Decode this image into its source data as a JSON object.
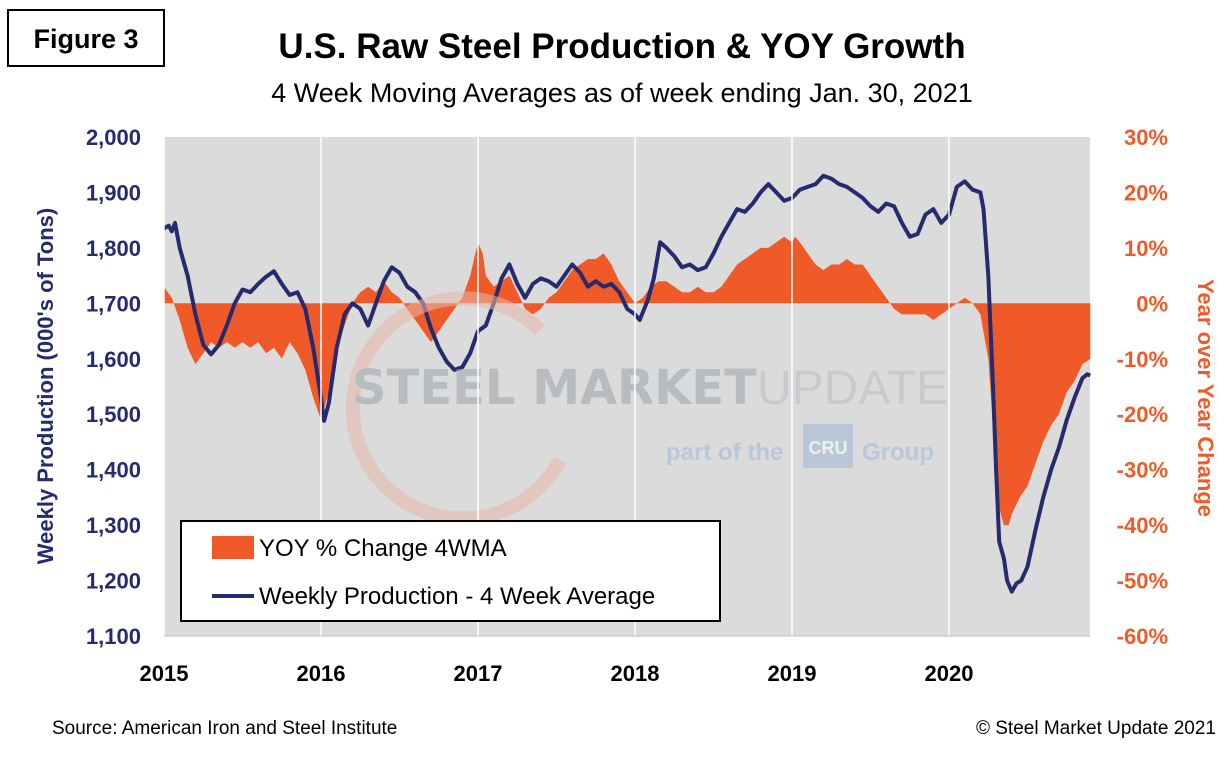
{
  "figure_label": "Figure 3",
  "footer": {
    "source": "Source: American Iron and Steel Institute",
    "copyright": "© Steel Market Update 2021"
  },
  "watermark": {
    "text_a": "STEEL MARKET",
    "text_b": "UPDATE",
    "tagline_a": "part of the",
    "badge": "CRU",
    "tagline_b": "Group"
  },
  "colors": {
    "production": "#262a6e",
    "yoy": "#f05a28",
    "plot_bg": "#dbdbdb",
    "left_axis": "#262a6e",
    "right_axis": "#f05a28"
  },
  "chart_data": {
    "type": "line",
    "title": "U.S. Raw Steel Production & YOY Growth",
    "subtitle": "4 Week Moving Averages as of week ending Jan. 30, 2021",
    "ylabel": "Weekly Production (000's of Tons)",
    "y2label": "Year over Year Change",
    "x_ticks": [
      "2015",
      "2016",
      "2017",
      "2018",
      "2019",
      "2020"
    ],
    "x_range": [
      2015.0,
      2020.9
    ],
    "ylim": [
      1100,
      2000
    ],
    "y_ticks": [
      "1,100",
      "1,200",
      "1,300",
      "1,400",
      "1,500",
      "1,600",
      "1,700",
      "1,800",
      "1,900",
      "2,000"
    ],
    "y2lim": [
      -60,
      30
    ],
    "y2_ticks": [
      "-60%",
      "-50%",
      "-40%",
      "-30%",
      "-20%",
      "-10%",
      "0%",
      "10%",
      "20%",
      "30%"
    ],
    "grid": false,
    "legend": {
      "placement": "bottom-left",
      "entries": [
        "YOY % Change 4WMA",
        "Weekly Production - 4 Week Average"
      ]
    },
    "series": [
      {
        "name": "Weekly Production - 4 Week Average",
        "kind": "line",
        "axis": "left",
        "points": [
          [
            2015.0,
            1835
          ],
          [
            2015.03,
            1840
          ],
          [
            2015.05,
            1830
          ],
          [
            2015.07,
            1845
          ],
          [
            2015.1,
            1800
          ],
          [
            2015.15,
            1750
          ],
          [
            2015.2,
            1680
          ],
          [
            2015.25,
            1625
          ],
          [
            2015.3,
            1608
          ],
          [
            2015.35,
            1625
          ],
          [
            2015.4,
            1660
          ],
          [
            2015.45,
            1700
          ],
          [
            2015.5,
            1725
          ],
          [
            2015.55,
            1720
          ],
          [
            2015.6,
            1735
          ],
          [
            2015.65,
            1748
          ],
          [
            2015.7,
            1758
          ],
          [
            2015.75,
            1735
          ],
          [
            2015.8,
            1715
          ],
          [
            2015.85,
            1720
          ],
          [
            2015.9,
            1690
          ],
          [
            2015.95,
            1620
          ],
          [
            2016.0,
            1530
          ],
          [
            2016.02,
            1488
          ],
          [
            2016.05,
            1520
          ],
          [
            2016.1,
            1620
          ],
          [
            2016.15,
            1680
          ],
          [
            2016.2,
            1700
          ],
          [
            2016.25,
            1690
          ],
          [
            2016.3,
            1660
          ],
          [
            2016.35,
            1700
          ],
          [
            2016.4,
            1740
          ],
          [
            2016.45,
            1765
          ],
          [
            2016.5,
            1755
          ],
          [
            2016.55,
            1730
          ],
          [
            2016.6,
            1720
          ],
          [
            2016.65,
            1700
          ],
          [
            2016.7,
            1655
          ],
          [
            2016.75,
            1620
          ],
          [
            2016.8,
            1595
          ],
          [
            2016.85,
            1580
          ],
          [
            2016.9,
            1585
          ],
          [
            2016.95,
            1610
          ],
          [
            2017.0,
            1650
          ],
          [
            2017.05,
            1660
          ],
          [
            2017.1,
            1700
          ],
          [
            2017.15,
            1745
          ],
          [
            2017.2,
            1770
          ],
          [
            2017.25,
            1735
          ],
          [
            2017.3,
            1710
          ],
          [
            2017.35,
            1735
          ],
          [
            2017.4,
            1745
          ],
          [
            2017.45,
            1740
          ],
          [
            2017.5,
            1730
          ],
          [
            2017.55,
            1750
          ],
          [
            2017.6,
            1770
          ],
          [
            2017.65,
            1755
          ],
          [
            2017.7,
            1730
          ],
          [
            2017.75,
            1740
          ],
          [
            2017.8,
            1730
          ],
          [
            2017.85,
            1735
          ],
          [
            2017.9,
            1720
          ],
          [
            2017.95,
            1690
          ],
          [
            2018.0,
            1680
          ],
          [
            2018.03,
            1670
          ],
          [
            2018.08,
            1705
          ],
          [
            2018.12,
            1745
          ],
          [
            2018.16,
            1810
          ],
          [
            2018.2,
            1800
          ],
          [
            2018.25,
            1785
          ],
          [
            2018.3,
            1765
          ],
          [
            2018.35,
            1770
          ],
          [
            2018.4,
            1760
          ],
          [
            2018.45,
            1765
          ],
          [
            2018.5,
            1790
          ],
          [
            2018.55,
            1820
          ],
          [
            2018.6,
            1845
          ],
          [
            2018.65,
            1870
          ],
          [
            2018.7,
            1865
          ],
          [
            2018.75,
            1880
          ],
          [
            2018.8,
            1900
          ],
          [
            2018.85,
            1915
          ],
          [
            2018.9,
            1900
          ],
          [
            2018.95,
            1885
          ],
          [
            2019.0,
            1890
          ],
          [
            2019.05,
            1905
          ],
          [
            2019.1,
            1910
          ],
          [
            2019.15,
            1915
          ],
          [
            2019.2,
            1930
          ],
          [
            2019.25,
            1925
          ],
          [
            2019.3,
            1915
          ],
          [
            2019.35,
            1910
          ],
          [
            2019.4,
            1900
          ],
          [
            2019.45,
            1890
          ],
          [
            2019.5,
            1875
          ],
          [
            2019.55,
            1865
          ],
          [
            2019.6,
            1880
          ],
          [
            2019.65,
            1875
          ],
          [
            2019.7,
            1845
          ],
          [
            2019.75,
            1820
          ],
          [
            2019.8,
            1825
          ],
          [
            2019.85,
            1860
          ],
          [
            2019.9,
            1870
          ],
          [
            2019.95,
            1845
          ],
          [
            2020.0,
            1860
          ],
          [
            2020.05,
            1910
          ],
          [
            2020.1,
            1920
          ],
          [
            2020.15,
            1905
          ],
          [
            2020.2,
            1900
          ],
          [
            2020.22,
            1870
          ],
          [
            2020.25,
            1750
          ],
          [
            2020.28,
            1550
          ],
          [
            2020.3,
            1400
          ],
          [
            2020.32,
            1270
          ],
          [
            2020.35,
            1240
          ],
          [
            2020.37,
            1200
          ],
          [
            2020.4,
            1180
          ],
          [
            2020.43,
            1195
          ],
          [
            2020.46,
            1200
          ],
          [
            2020.5,
            1225
          ],
          [
            2020.55,
            1290
          ],
          [
            2020.6,
            1350
          ],
          [
            2020.65,
            1400
          ],
          [
            2020.7,
            1440
          ],
          [
            2020.75,
            1490
          ],
          [
            2020.8,
            1530
          ],
          [
            2020.85,
            1565
          ],
          [
            2020.88,
            1572
          ],
          [
            2020.9,
            1570
          ]
        ]
      },
      {
        "name": "YOY % Change 4WMA",
        "kind": "area",
        "axis": "right",
        "points": [
          [
            2015.0,
            3
          ],
          [
            2015.05,
            1
          ],
          [
            2015.1,
            -3
          ],
          [
            2015.15,
            -8
          ],
          [
            2015.2,
            -11
          ],
          [
            2015.25,
            -9
          ],
          [
            2015.3,
            -7
          ],
          [
            2015.35,
            -8
          ],
          [
            2015.4,
            -7
          ],
          [
            2015.45,
            -8
          ],
          [
            2015.5,
            -7
          ],
          [
            2015.55,
            -8
          ],
          [
            2015.6,
            -7
          ],
          [
            2015.65,
            -9
          ],
          [
            2015.7,
            -8
          ],
          [
            2015.75,
            -10
          ],
          [
            2015.8,
            -7
          ],
          [
            2015.85,
            -9
          ],
          [
            2015.9,
            -12
          ],
          [
            2015.95,
            -17
          ],
          [
            2016.0,
            -21
          ],
          [
            2016.05,
            -16
          ],
          [
            2016.1,
            -8
          ],
          [
            2016.15,
            -4
          ],
          [
            2016.2,
            0
          ],
          [
            2016.25,
            2
          ],
          [
            2016.3,
            3
          ],
          [
            2016.35,
            2
          ],
          [
            2016.4,
            4
          ],
          [
            2016.45,
            2
          ],
          [
            2016.5,
            1
          ],
          [
            2016.55,
            -1
          ],
          [
            2016.6,
            -3
          ],
          [
            2016.65,
            -5
          ],
          [
            2016.7,
            -7
          ],
          [
            2016.75,
            -5
          ],
          [
            2016.8,
            -3
          ],
          [
            2016.85,
            -1
          ],
          [
            2016.9,
            1
          ],
          [
            2016.95,
            5
          ],
          [
            2017.0,
            11
          ],
          [
            2017.03,
            9
          ],
          [
            2017.05,
            5
          ],
          [
            2017.1,
            3
          ],
          [
            2017.15,
            4
          ],
          [
            2017.2,
            5
          ],
          [
            2017.25,
            2
          ],
          [
            2017.3,
            -1
          ],
          [
            2017.35,
            -2
          ],
          [
            2017.4,
            -1
          ],
          [
            2017.45,
            1
          ],
          [
            2017.5,
            2
          ],
          [
            2017.55,
            4
          ],
          [
            2017.6,
            6
          ],
          [
            2017.65,
            7
          ],
          [
            2017.7,
            8
          ],
          [
            2017.75,
            8
          ],
          [
            2017.8,
            9
          ],
          [
            2017.85,
            7
          ],
          [
            2017.9,
            4
          ],
          [
            2017.95,
            2
          ],
          [
            2018.0,
            0
          ],
          [
            2018.05,
            1
          ],
          [
            2018.1,
            3
          ],
          [
            2018.15,
            4
          ],
          [
            2018.2,
            4
          ],
          [
            2018.25,
            3
          ],
          [
            2018.3,
            2
          ],
          [
            2018.35,
            2
          ],
          [
            2018.4,
            3
          ],
          [
            2018.45,
            2
          ],
          [
            2018.5,
            2
          ],
          [
            2018.55,
            3
          ],
          [
            2018.6,
            5
          ],
          [
            2018.65,
            7
          ],
          [
            2018.7,
            8
          ],
          [
            2018.75,
            9
          ],
          [
            2018.8,
            10
          ],
          [
            2018.85,
            10
          ],
          [
            2018.9,
            11
          ],
          [
            2018.95,
            12
          ],
          [
            2019.0,
            11
          ],
          [
            2019.02,
            12
          ],
          [
            2019.05,
            11
          ],
          [
            2019.1,
            9
          ],
          [
            2019.15,
            7
          ],
          [
            2019.2,
            6
          ],
          [
            2019.25,
            7
          ],
          [
            2019.3,
            7
          ],
          [
            2019.35,
            8
          ],
          [
            2019.4,
            7
          ],
          [
            2019.45,
            7
          ],
          [
            2019.5,
            5
          ],
          [
            2019.55,
            3
          ],
          [
            2019.6,
            1
          ],
          [
            2019.65,
            -1
          ],
          [
            2019.7,
            -2
          ],
          [
            2019.75,
            -2
          ],
          [
            2019.8,
            -2
          ],
          [
            2019.85,
            -2
          ],
          [
            2019.9,
            -3
          ],
          [
            2019.95,
            -2
          ],
          [
            2020.0,
            -1
          ],
          [
            2020.05,
            0
          ],
          [
            2020.1,
            1
          ],
          [
            2020.15,
            0
          ],
          [
            2020.2,
            -2
          ],
          [
            2020.25,
            -10
          ],
          [
            2020.28,
            -22
          ],
          [
            2020.3,
            -34
          ],
          [
            2020.33,
            -38
          ],
          [
            2020.35,
            -40
          ],
          [
            2020.38,
            -40
          ],
          [
            2020.4,
            -38
          ],
          [
            2020.45,
            -35
          ],
          [
            2020.5,
            -33
          ],
          [
            2020.55,
            -29
          ],
          [
            2020.6,
            -25
          ],
          [
            2020.65,
            -22
          ],
          [
            2020.7,
            -20
          ],
          [
            2020.75,
            -16
          ],
          [
            2020.8,
            -14
          ],
          [
            2020.85,
            -11
          ],
          [
            2020.9,
            -10
          ]
        ]
      }
    ]
  }
}
